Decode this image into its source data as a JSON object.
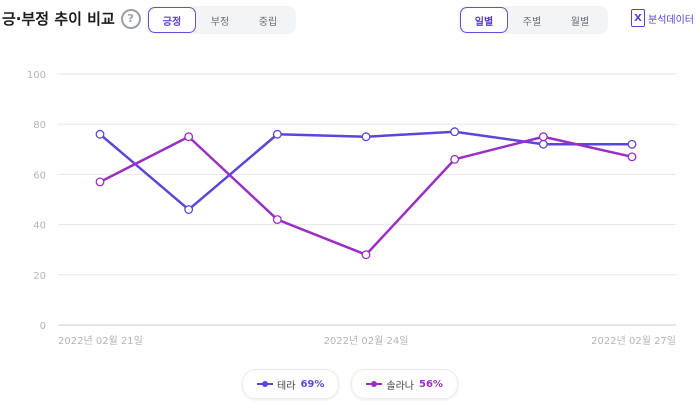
{
  "header": {
    "title": "긍·부정 추이 비교",
    "help_label": "?",
    "sentiment_tabs": [
      {
        "label": "긍정",
        "active": true
      },
      {
        "label": "부정",
        "active": false
      },
      {
        "label": "중립",
        "active": false
      }
    ],
    "period_tabs": [
      {
        "label": "일별",
        "active": true
      },
      {
        "label": "주별",
        "active": false
      },
      {
        "label": "월별",
        "active": false
      }
    ],
    "excel_label": "분석데이터",
    "excel_icon_glyph": "X"
  },
  "colors": {
    "series1": "#5a47d8",
    "series2": "#9b2fc4",
    "grid": "#e6e6e6",
    "axis_text": "#b5b5b5",
    "accent": "#5b3fcf"
  },
  "chart_data": {
    "type": "line",
    "x": [
      "2022-02-21",
      "2022-02-22",
      "2022-02-23",
      "2022-02-24",
      "2022-02-25",
      "2022-02-26",
      "2022-02-27"
    ],
    "x_tick_labels": [
      {
        "index": 0,
        "label": "2022년 02월 21일"
      },
      {
        "index": 3,
        "label": "2022년 02월 24일"
      },
      {
        "index": 6,
        "label": "2022년 02월 27일"
      }
    ],
    "ylim": [
      0,
      100
    ],
    "y_ticks": [
      0,
      20,
      40,
      60,
      80,
      100
    ],
    "grid": true,
    "legend_position": "bottom-center",
    "series": [
      {
        "name": "테라",
        "share": "69%",
        "values": [
          76,
          46,
          76,
          75,
          77,
          72,
          72
        ]
      },
      {
        "name": "솔라나",
        "share": "56%",
        "values": [
          57,
          75,
          42,
          28,
          66,
          75,
          67
        ]
      }
    ]
  }
}
